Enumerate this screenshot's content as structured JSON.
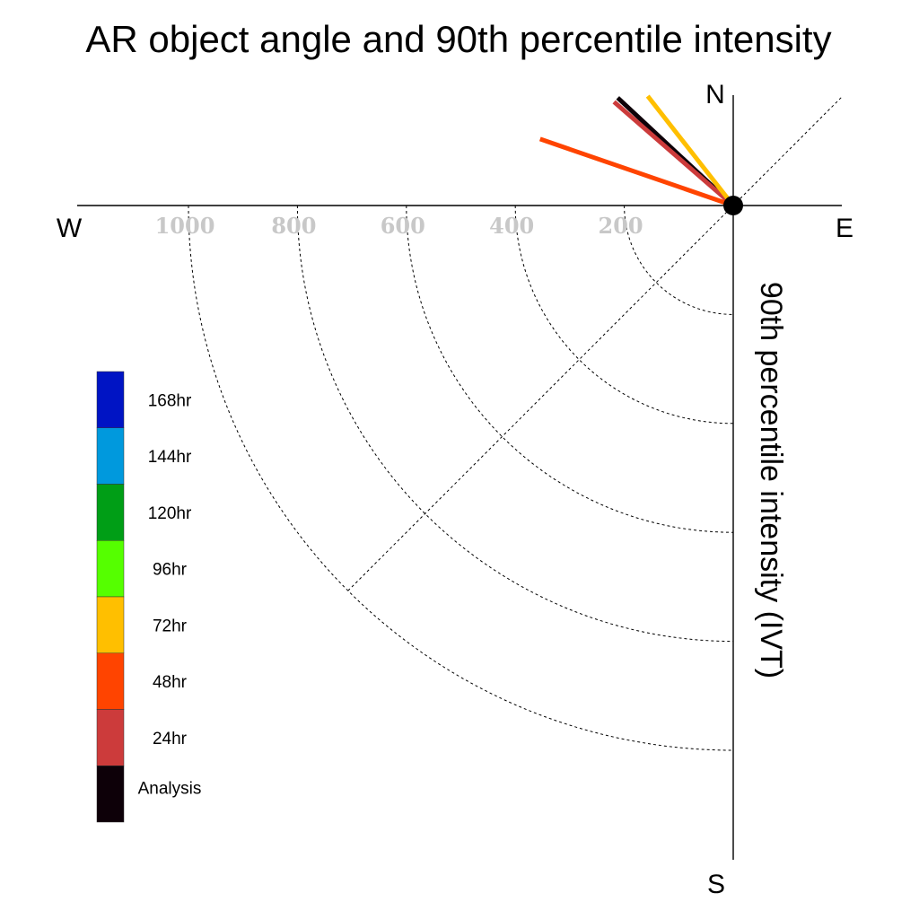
{
  "chart_data": {
    "type": "polar-vector",
    "title": "AR object angle and 90th percentile intensity",
    "ylabel": "90th percentile intensity (IVT)",
    "compass": {
      "north": "N",
      "south": "S",
      "east": "E",
      "west": "W"
    },
    "rings": [
      200,
      400,
      600,
      800,
      1000
    ],
    "ring_labels": [
      "1000",
      "800",
      "600",
      "400",
      "200"
    ],
    "rmax": 1000,
    "vectors": [
      {
        "name": "Analysis",
        "color": "#0d0008",
        "angle_deg": 313,
        "intensity": 290
      },
      {
        "name": "24hr",
        "color": "#cc3b3b",
        "angle_deg": 311,
        "intensity": 290
      },
      {
        "name": "48hr",
        "color": "#ff4400",
        "angle_deg": 289,
        "intensity": 375
      },
      {
        "name": "72hr",
        "color": "#ffbf00",
        "angle_deg": 322,
        "intensity": 255
      }
    ],
    "legend": [
      {
        "label": "168hr",
        "color": "#0014c4"
      },
      {
        "label": "144hr",
        "color": "#0099dd"
      },
      {
        "label": "120hr",
        "color": "#009e16"
      },
      {
        "label": "96hr",
        "color": "#55ff00"
      },
      {
        "label": "72hr",
        "color": "#ffbf00"
      },
      {
        "label": "48hr",
        "color": "#ff4400"
      },
      {
        "label": "24hr",
        "color": "#cc3b3b"
      },
      {
        "label": "Analysis",
        "color": "#0d0008"
      }
    ]
  }
}
